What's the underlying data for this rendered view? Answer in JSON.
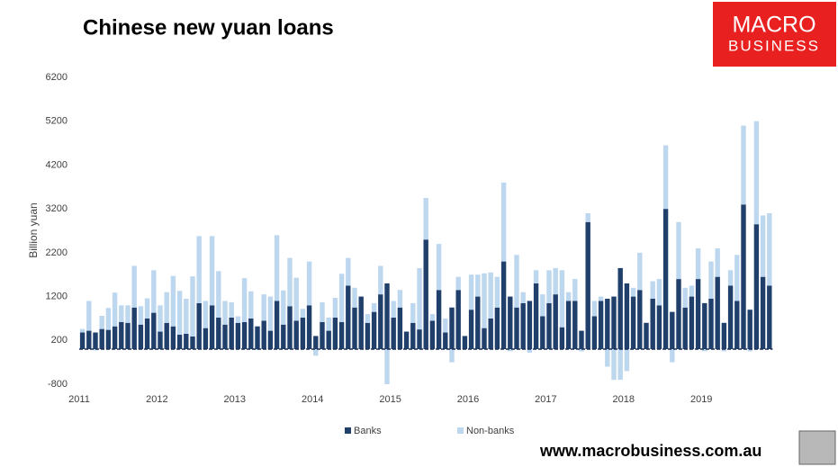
{
  "logo": {
    "top": "MACRO",
    "bottom": "BUSINESS"
  },
  "footer": "www.macrobusiness.com.au",
  "chart_data": {
    "type": "stacked-bar",
    "title": "Chinese new yuan loans",
    "y_label": "Billion yuan",
    "categories": [
      "2011",
      null,
      null,
      null,
      null,
      null,
      null,
      null,
      null,
      null,
      null,
      null,
      "2012",
      null,
      null,
      null,
      null,
      null,
      null,
      null,
      null,
      null,
      null,
      null,
      "2013",
      null,
      null,
      null,
      null,
      null,
      null,
      null,
      null,
      null,
      null,
      null,
      "2014",
      null,
      null,
      null,
      null,
      null,
      null,
      null,
      null,
      null,
      null,
      null,
      "2015",
      null,
      null,
      null,
      null,
      null,
      null,
      null,
      null,
      null,
      null,
      null,
      "2016",
      null,
      null,
      null,
      null,
      null,
      null,
      null,
      null,
      null,
      null,
      null,
      "2017",
      null,
      null,
      null,
      null,
      null,
      null,
      null,
      null,
      null,
      null,
      null,
      "2018",
      null,
      null,
      null,
      null,
      null,
      null,
      null,
      null,
      null,
      null,
      null,
      "2019",
      null,
      null,
      null,
      null,
      null,
      null,
      null,
      null,
      null,
      null
    ],
    "series": [
      {
        "name": "Banks",
        "color": "#203f6b",
        "values": [
          380,
          420,
          380,
          460,
          440,
          520,
          620,
          600,
          950,
          560,
          700,
          830,
          400,
          600,
          520,
          330,
          350,
          290,
          1050,
          480,
          1000,
          720,
          560,
          720,
          600,
          620,
          700,
          520,
          650,
          420,
          1100,
          560,
          980,
          650,
          720,
          1000,
          300,
          620,
          420,
          720,
          620,
          1450,
          950,
          1200,
          600,
          850,
          1250,
          1500,
          720,
          950,
          400,
          600,
          450,
          2500,
          650,
          1350,
          380,
          950,
          1350,
          300,
          900,
          1200,
          480,
          700,
          950,
          2000,
          1200,
          950,
          1050,
          1100,
          1500,
          750,
          1050,
          1250,
          500,
          1100,
          1100,
          420,
          2900,
          750,
          1100,
          1150,
          1200,
          1850,
          1500,
          1200,
          1350,
          600,
          1150,
          1000,
          3200,
          850,
          1600,
          950,
          1200,
          1600,
          1050,
          1150,
          1650,
          600,
          1450,
          1100,
          3300,
          900,
          2850,
          1650,
          1450
        ]
      },
      {
        "name": "Non-banks",
        "color": "#bdd7ee",
        "values": [
          80,
          680,
          -30,
          300,
          500,
          770,
          380,
          400,
          950,
          420,
          460,
          970,
          600,
          700,
          1150,
          1000,
          800,
          1370,
          1530,
          620,
          1580,
          1060,
          540,
          350,
          150,
          1000,
          620,
          -20,
          600,
          780,
          1500,
          780,
          1100,
          980,
          200,
          1000,
          -150,
          450,
          300,
          450,
          1100,
          630,
          450,
          0,
          200,
          200,
          650,
          -800,
          380,
          400,
          0,
          450,
          1400,
          950,
          150,
          1050,
          320,
          -300,
          300,
          0,
          800,
          500,
          1250,
          1050,
          700,
          1800,
          -50,
          1200,
          250,
          -80,
          300,
          500,
          750,
          600,
          1300,
          200,
          500,
          -50,
          200,
          350,
          100,
          -400,
          -700,
          -700,
          -500,
          200,
          850,
          0,
          400,
          600,
          1450,
          -300,
          1300,
          450,
          250,
          700,
          -50,
          850,
          650,
          -50,
          350,
          1050,
          1800,
          -50,
          2350,
          1400,
          1650
        ]
      }
    ],
    "ylim": [
      -800,
      6200
    ],
    "yticks": [
      -800,
      200,
      1200,
      2200,
      3200,
      4200,
      5200,
      6200
    ],
    "grid": false,
    "legend": "bottom"
  }
}
